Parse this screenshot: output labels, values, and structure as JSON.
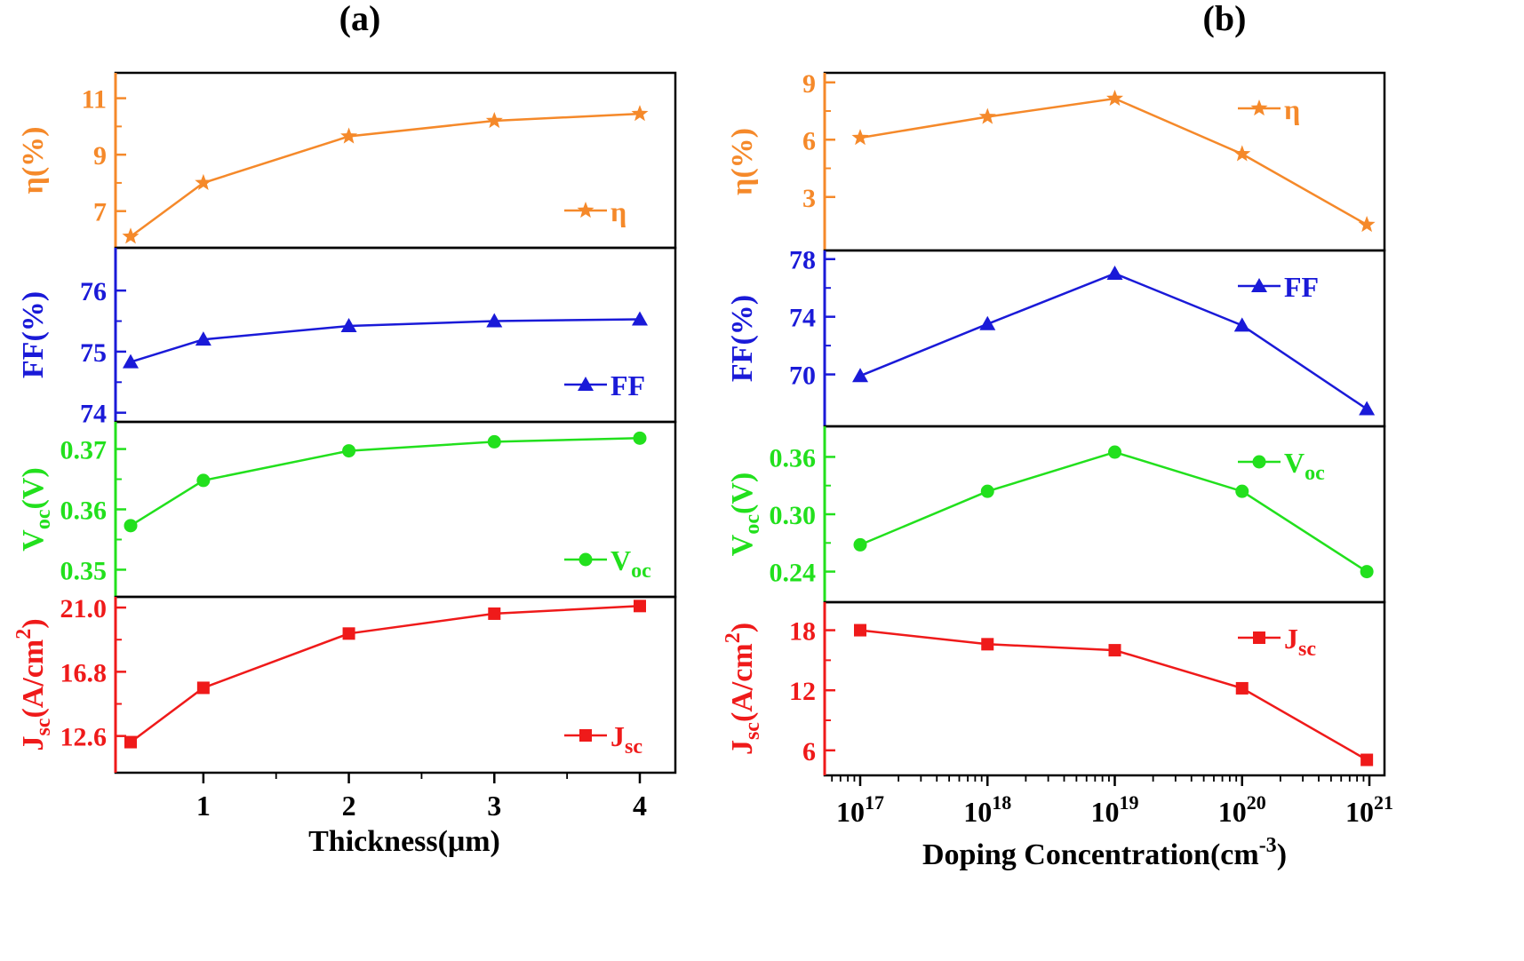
{
  "figure_labels": {
    "a": "(a)",
    "b": "(b)"
  },
  "colors": {
    "eta": "#f5892a",
    "ff": "#1a1ad8",
    "voc": "#22e01d",
    "jsc": "#ef1a1a",
    "axis": "#000000"
  },
  "chart_data": [
    {
      "id": "a",
      "type": "line",
      "x_scale": "linear",
      "xlabel": "Thickness(μm)",
      "xlim": [
        0.4,
        4.2
      ],
      "x_ticks": [
        1,
        2,
        3,
        4
      ],
      "x_tick_labels": [
        "1",
        "2",
        "3",
        "4"
      ],
      "x_minor_ticks": [
        1.5,
        2.5,
        3.5
      ],
      "x": [
        0.5,
        1,
        2,
        3,
        4
      ],
      "panels": [
        {
          "key": "eta",
          "ylabel": "η(%)",
          "ylim": [
            5.7,
            11.9
          ],
          "y_ticks": [
            7,
            9,
            11
          ],
          "y_tick_labels": [
            "7",
            "9",
            "11"
          ],
          "values": [
            6.1,
            8.0,
            9.65,
            10.2,
            10.45
          ],
          "legend": {
            "name": "η",
            "marker": "star",
            "position": "bottom-right"
          }
        },
        {
          "key": "ff",
          "ylabel": "FF(%)",
          "ylim": [
            73.85,
            76.7
          ],
          "y_ticks": [
            74,
            75,
            76
          ],
          "y_tick_labels": [
            "74",
            "75",
            "76"
          ],
          "values": [
            74.83,
            75.2,
            75.42,
            75.5,
            75.53
          ],
          "legend": {
            "name": "FF",
            "marker": "triangle",
            "position": "bottom-right"
          }
        },
        {
          "key": "voc",
          "ylabel": "Voc(V)",
          "ylim": [
            0.3455,
            0.3745
          ],
          "y_ticks": [
            0.35,
            0.36,
            0.37
          ],
          "y_tick_labels": [
            "0.35",
            "0.36",
            "0.37"
          ],
          "values": [
            0.3573,
            0.3648,
            0.3697,
            0.3712,
            0.3718
          ],
          "legend": {
            "name": "Voc",
            "marker": "circle",
            "position": "bottom-right"
          }
        },
        {
          "key": "jsc",
          "ylabel": "Jsc(A/cm2)",
          "ylim": [
            10.2,
            21.7
          ],
          "y_ticks": [
            12.6,
            16.8,
            21.0
          ],
          "y_tick_labels": [
            "12.6",
            "16.8",
            "21.0"
          ],
          "values": [
            12.2,
            15.75,
            19.3,
            20.6,
            21.1
          ],
          "legend": {
            "name": "Jsc",
            "marker": "square",
            "position": "bottom-right"
          }
        }
      ]
    },
    {
      "id": "b",
      "type": "line",
      "x_scale": "log",
      "xlabel": "Doping Concentration(cm-3)",
      "xlim_exponent": [
        16.7,
        21.05
      ],
      "x_ticks_exponent": [
        17,
        18,
        19,
        20,
        21
      ],
      "x_tick_labels": [
        "10^17",
        "10^18",
        "10^19",
        "10^20",
        "10^21"
      ],
      "x_exponent": [
        17,
        18,
        19,
        20,
        20.98
      ],
      "panels": [
        {
          "key": "eta",
          "ylabel": "η(%)",
          "ylim": [
            0.2,
            9.5
          ],
          "y_ticks": [
            3,
            6,
            9
          ],
          "y_tick_labels": [
            "3",
            "6",
            "9"
          ],
          "values": [
            6.1,
            7.2,
            8.15,
            5.25,
            1.55
          ],
          "legend": {
            "name": "η",
            "marker": "star",
            "position": "top-right"
          }
        },
        {
          "key": "ff",
          "ylabel": "FF(%)",
          "ylim": [
            66.4,
            78.6
          ],
          "y_ticks": [
            70,
            74,
            78
          ],
          "y_tick_labels": [
            "70",
            "74",
            "78"
          ],
          "values": [
            69.9,
            73.5,
            77.0,
            73.4,
            67.6
          ],
          "legend": {
            "name": "FF",
            "marker": "triangle",
            "position": "top-right"
          }
        },
        {
          "key": "voc",
          "ylabel": "Voc(V)",
          "ylim": [
            0.208,
            0.392
          ],
          "y_ticks": [
            0.24,
            0.3,
            0.36
          ],
          "y_tick_labels": [
            "0.24",
            "0.30",
            "0.36"
          ],
          "values": [
            0.268,
            0.324,
            0.365,
            0.324,
            0.24
          ],
          "legend": {
            "name": "Voc",
            "marker": "circle",
            "position": "top-right"
          }
        },
        {
          "key": "jsc",
          "ylabel": "Jsc(A/cm2)",
          "ylim": [
            3.5,
            20.8
          ],
          "y_ticks": [
            6,
            12,
            18
          ],
          "y_tick_labels": [
            "6",
            "12",
            "18"
          ],
          "values": [
            18.0,
            16.6,
            16.0,
            12.2,
            5.05
          ],
          "legend": {
            "name": "Jsc",
            "marker": "square",
            "position": "top-right"
          }
        }
      ]
    }
  ]
}
